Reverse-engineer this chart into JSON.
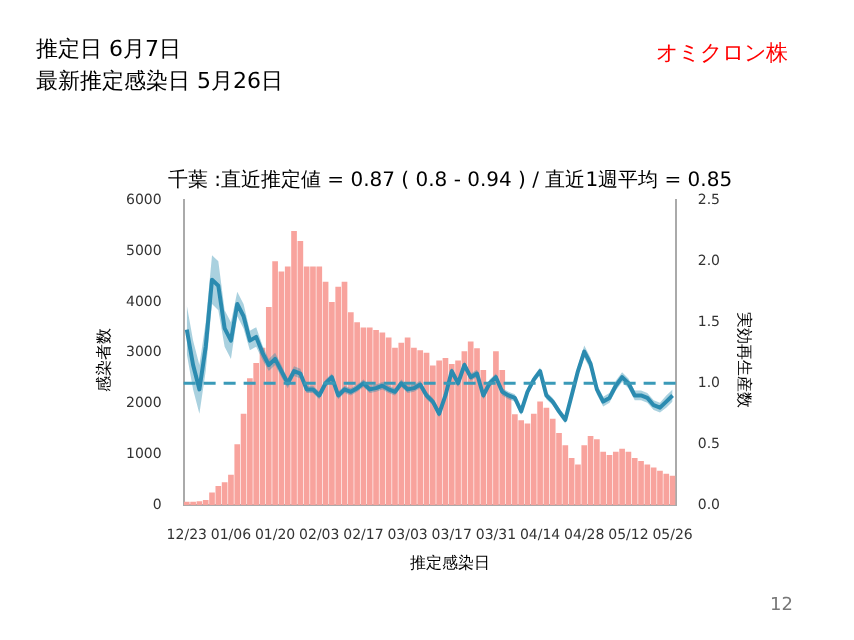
{
  "chart_data": {
    "type": "bar",
    "title": "千葉 :直近推定値 = 0.87 ( 0.8 - 0.94 ) / 直近1週平均 = 0.85",
    "xlabel": "推定感染日",
    "ylabel": "感染者数",
    "y2label": "実効再生産数",
    "annotations": [
      "推定日  6月7日",
      "最新推定感染日  5月26日",
      "オミクロン株",
      "12"
    ],
    "categories": [
      "12/23",
      null,
      null,
      null,
      null,
      null,
      null,
      "01/06",
      null,
      null,
      null,
      null,
      null,
      null,
      "01/20",
      null,
      null,
      null,
      null,
      null,
      null,
      "02/03",
      null,
      null,
      null,
      null,
      null,
      null,
      "02/17",
      null,
      null,
      null,
      null,
      null,
      null,
      "03/03",
      null,
      null,
      null,
      null,
      null,
      null,
      "03/17",
      null,
      null,
      null,
      null,
      null,
      null,
      "03/31",
      null,
      null,
      null,
      null,
      null,
      null,
      "04/14",
      null,
      null,
      null,
      null,
      null,
      null,
      "04/28",
      null,
      null,
      null,
      null,
      null,
      null,
      "05/12",
      null,
      null,
      null,
      null,
      null,
      null,
      "05/26"
    ],
    "series": [
      {
        "color": "#f8a39d",
        "values": [
          70,
          70,
          80,
          100,
          250,
          380,
          450,
          600,
          1200,
          1800,
          2500,
          2800,
          3100,
          3900,
          4800,
          4600,
          4700,
          5400,
          5200,
          4700,
          4700,
          4700,
          4400,
          4000,
          4300,
          4400,
          3800,
          3600,
          3500,
          3500,
          3450,
          3400,
          3300,
          3100,
          3200,
          3300,
          3100,
          3050,
          3000,
          2750,
          2850,
          2900,
          2780,
          2850,
          3030,
          3220,
          3090,
          2660,
          2410,
          3030,
          2660,
          2170,
          1790,
          1670,
          1610,
          1800,
          2040,
          1920,
          1700,
          1420,
          1180,
          930,
          800,
          1180,
          1360,
          1300,
          1050,
          990,
          1050,
          1110,
          1050,
          930,
          870,
          800,
          740,
          680,
          620,
          580
        ]
      },
      {
        "type": "line",
        "axis": "y2",
        "color": "#2b8bb0",
        "values": [
          1.44,
          1.15,
          0.95,
          1.3,
          1.85,
          1.8,
          1.45,
          1.35,
          1.65,
          1.55,
          1.35,
          1.38,
          1.25,
          1.15,
          1.2,
          1.1,
          1.0,
          1.1,
          1.08,
          0.95,
          0.95,
          0.9,
          1.0,
          1.05,
          0.9,
          0.95,
          0.93,
          0.96,
          1.0,
          0.95,
          0.96,
          0.98,
          0.95,
          0.93,
          1.0,
          0.95,
          0.96,
          0.99,
          0.9,
          0.85,
          0.75,
          0.9,
          1.1,
          1.0,
          1.15,
          1.05,
          1.08,
          0.9,
          1.0,
          1.05,
          0.93,
          0.9,
          0.88,
          0.77,
          0.93,
          1.03,
          1.1,
          0.9,
          0.85,
          0.77,
          0.7,
          0.9,
          1.1,
          1.26,
          1.16,
          0.95,
          0.85,
          0.88,
          0.98,
          1.05,
          1.0,
          0.9,
          0.9,
          0.88,
          0.82,
          0.8,
          0.85,
          0.9
        ],
        "lower": [
          1.24,
          0.95,
          0.75,
          1.1,
          1.65,
          1.6,
          1.3,
          1.2,
          1.55,
          1.45,
          1.27,
          1.3,
          1.19,
          1.1,
          1.15,
          1.05,
          0.96,
          1.06,
          1.04,
          0.92,
          0.92,
          0.87,
          0.97,
          1.02,
          0.87,
          0.92,
          0.9,
          0.93,
          0.97,
          0.92,
          0.93,
          0.95,
          0.92,
          0.9,
          0.97,
          0.92,
          0.93,
          0.96,
          0.87,
          0.82,
          0.72,
          0.87,
          1.07,
          0.97,
          1.12,
          1.02,
          1.05,
          0.87,
          0.97,
          1.02,
          0.9,
          0.87,
          0.85,
          0.74,
          0.9,
          1.0,
          1.07,
          0.87,
          0.82,
          0.74,
          0.67,
          0.87,
          1.06,
          1.21,
          1.11,
          0.91,
          0.81,
          0.84,
          0.94,
          1.01,
          0.96,
          0.86,
          0.86,
          0.84,
          0.78,
          0.76,
          0.8,
          0.85
        ],
        "upper": [
          1.64,
          1.35,
          1.15,
          1.5,
          2.05,
          2.0,
          1.6,
          1.5,
          1.75,
          1.65,
          1.43,
          1.46,
          1.31,
          1.2,
          1.25,
          1.15,
          1.04,
          1.14,
          1.12,
          0.98,
          0.98,
          0.93,
          1.03,
          1.08,
          0.93,
          0.98,
          0.96,
          0.99,
          1.03,
          0.98,
          0.99,
          1.01,
          0.98,
          0.96,
          1.03,
          0.98,
          0.99,
          1.02,
          0.93,
          0.88,
          0.78,
          0.93,
          1.13,
          1.03,
          1.18,
          1.08,
          1.11,
          0.93,
          1.03,
          1.08,
          0.96,
          0.93,
          0.91,
          0.8,
          0.96,
          1.06,
          1.13,
          0.93,
          0.88,
          0.8,
          0.73,
          0.93,
          1.14,
          1.31,
          1.21,
          0.99,
          0.89,
          0.92,
          1.02,
          1.09,
          1.04,
          0.94,
          0.94,
          0.92,
          0.86,
          0.84,
          0.9,
          0.95
        ]
      }
    ],
    "ylim": [
      0,
      6000
    ],
    "yticks": [
      0,
      1000,
      2000,
      3000,
      4000,
      5000,
      6000
    ],
    "y2lim": [
      0,
      2.5
    ],
    "y2ticks": [
      {
        "value": 0,
        "label": "0.0"
      },
      {
        "value": 0.5,
        "label": "0.5"
      },
      {
        "value": 1,
        "label": "1.0"
      },
      {
        "value": 1.5,
        "label": "1.5"
      },
      {
        "value": 2,
        "label": "2.0"
      },
      {
        "value": 2.5,
        "label": "2.5"
      }
    ],
    "ref_lines": [
      {
        "axis": "y2",
        "value": 1,
        "color": "#3a9ab8",
        "line_style": "dashed"
      }
    ],
    "grid": false,
    "legend": false,
    "line_style": "solid",
    "marker": "none"
  }
}
